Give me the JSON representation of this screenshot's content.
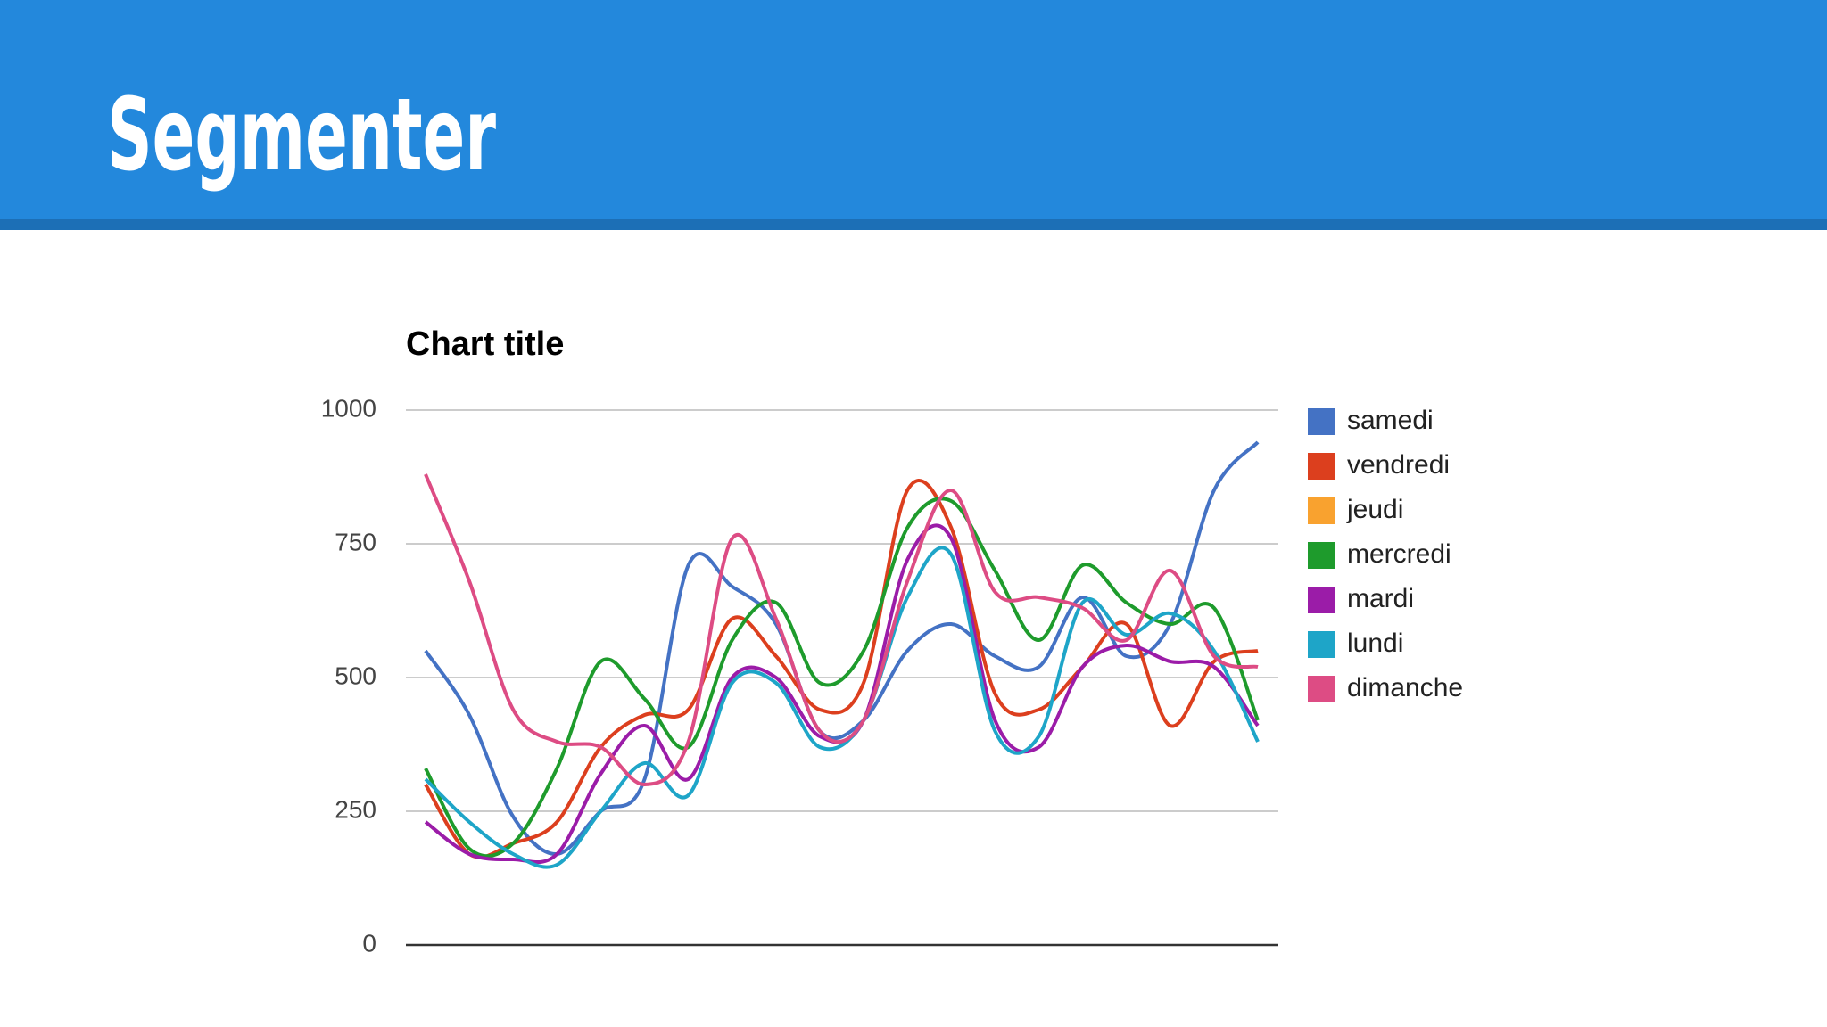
{
  "header": {
    "title": "Segmenter"
  },
  "chart_data": {
    "type": "line",
    "title": "Chart title",
    "categories": [
      null,
      null,
      null,
      null,
      null,
      null,
      null,
      null,
      null,
      null,
      null,
      null,
      null,
      null,
      null,
      null,
      null,
      null,
      null,
      null
    ],
    "ylim": [
      0,
      1000
    ],
    "yticks": [
      0,
      250,
      500,
      750,
      1000
    ],
    "grid": true,
    "legend": "right",
    "smooth": true,
    "series": [
      {
        "name": "samedi",
        "color": "#4472c4",
        "values": [
          550,
          430,
          240,
          170,
          250,
          310,
          710,
          670,
          600,
          400,
          420,
          550,
          600,
          540,
          520,
          650,
          540,
          600,
          850,
          940
        ]
      },
      {
        "name": "vendredi",
        "color": "#dc3f1e",
        "values": [
          300,
          170,
          190,
          230,
          370,
          430,
          440,
          610,
          540,
          440,
          490,
          850,
          780,
          470,
          440,
          520,
          600,
          410,
          530,
          550
        ]
      },
      {
        "name": "jeudi",
        "color": "#f9a22f",
        "values": [
          null,
          null,
          null,
          null,
          null,
          null,
          null,
          null,
          null,
          null,
          null,
          null,
          null,
          null,
          null,
          null,
          null,
          null,
          null,
          null
        ]
      },
      {
        "name": "mercredi",
        "color": "#1e9b2c",
        "values": [
          330,
          180,
          190,
          330,
          530,
          460,
          370,
          570,
          640,
          490,
          550,
          780,
          830,
          700,
          570,
          710,
          640,
          600,
          630,
          420
        ]
      },
      {
        "name": "mardi",
        "color": "#9b1ca8",
        "values": [
          230,
          170,
          160,
          170,
          320,
          410,
          310,
          500,
          500,
          390,
          420,
          720,
          760,
          420,
          370,
          520,
          560,
          530,
          520,
          410
        ]
      },
      {
        "name": "lundi",
        "color": "#1ea5c8",
        "values": [
          310,
          230,
          170,
          150,
          250,
          340,
          280,
          490,
          490,
          370,
          420,
          650,
          730,
          400,
          390,
          640,
          580,
          620,
          550,
          380
        ]
      },
      {
        "name": "dimanche",
        "color": "#dd4c84",
        "values": [
          880,
          680,
          440,
          380,
          370,
          300,
          380,
          760,
          610,
          400,
          420,
          680,
          850,
          660,
          650,
          630,
          570,
          700,
          540,
          520
        ]
      }
    ]
  }
}
